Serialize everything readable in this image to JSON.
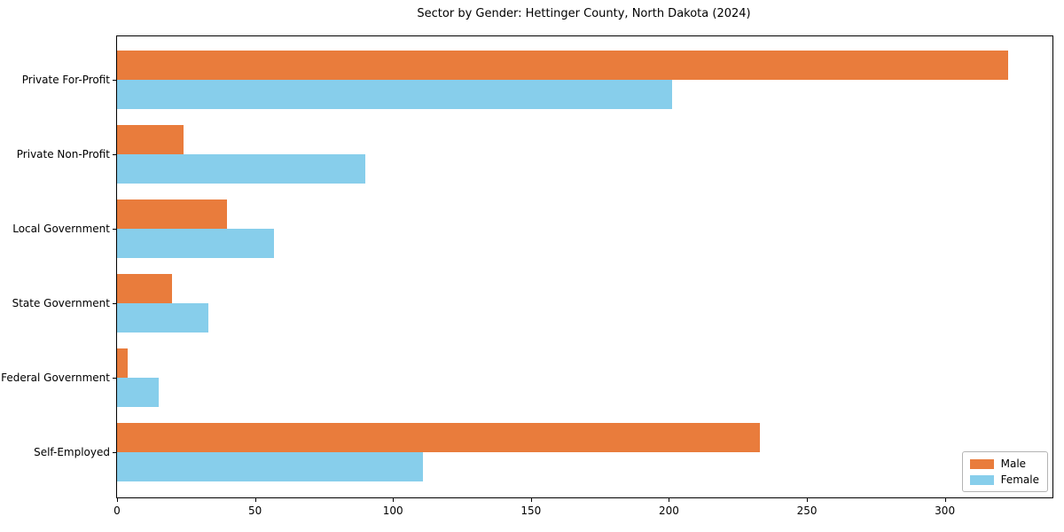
{
  "title": "Sector by Gender: Hettinger County, North Dakota (2024)",
  "colors": {
    "male": "#e97c3c",
    "female": "#87ceeb",
    "axis": "#000000",
    "legend_border": "#b4b4b4",
    "background": "#ffffff"
  },
  "legend": {
    "items": [
      {
        "label": "Male",
        "color": "#e97c3c"
      },
      {
        "label": "Female",
        "color": "#87ceeb"
      }
    ]
  },
  "chart_data": {
    "type": "bar",
    "orientation": "horizontal",
    "title": "Sector by Gender: Hettinger County, North Dakota (2024)",
    "categories": [
      "Private For-Profit",
      "Private Non-Profit",
      "Local Government",
      "State Government",
      "Federal Government",
      "Self-Employed"
    ],
    "series": [
      {
        "name": "Male",
        "color": "#e97c3c",
        "values": [
          323,
          24,
          40,
          20,
          4,
          233
        ]
      },
      {
        "name": "Female",
        "color": "#87ceeb",
        "values": [
          201,
          90,
          57,
          33,
          15,
          111
        ]
      }
    ],
    "x_ticks": [
      0,
      50,
      100,
      150,
      200,
      250,
      300
    ],
    "xlim": [
      0,
      339
    ],
    "xlabel": "",
    "ylabel": "",
    "grid": false,
    "legend_position": "lower right"
  }
}
